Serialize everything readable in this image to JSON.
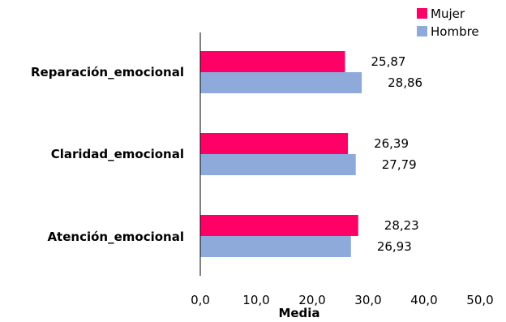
{
  "chart_data": {
    "type": "bar",
    "orientation": "horizontal",
    "categories": [
      "Reparación_emocional",
      "Claridad_emocional",
      "Atención_emocional"
    ],
    "series": [
      {
        "name": "Mujer",
        "values": [
          25.87,
          26.39,
          28.23
        ],
        "value_labels": [
          "25,87",
          "26,39",
          "28,23"
        ]
      },
      {
        "name": "Hombre",
        "values": [
          28.86,
          27.79,
          26.93
        ],
        "value_labels": [
          "28,86",
          "27,79",
          "26,93"
        ]
      }
    ],
    "xlabel": "Media",
    "xlim": [
      0,
      50
    ],
    "xticks": [
      "0,0",
      "10,0",
      "20,0",
      "30,0",
      "40,0",
      "50,0"
    ],
    "grid": false,
    "legend_position": "top-right",
    "colors": {
      "Mujer": "#ff0066",
      "Hombre": "#8eaadb"
    }
  }
}
